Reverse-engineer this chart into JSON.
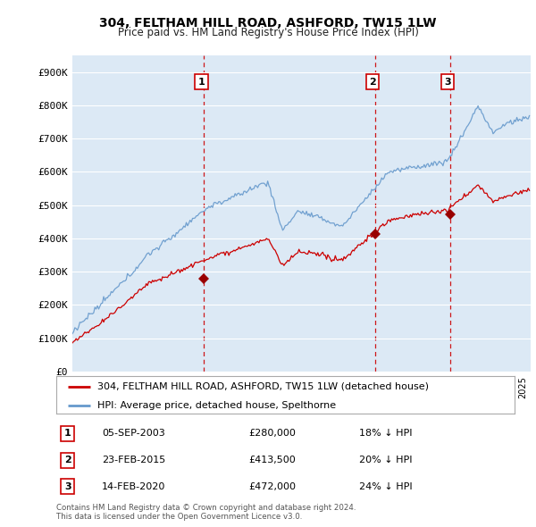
{
  "title": "304, FELTHAM HILL ROAD, ASHFORD, TW15 1LW",
  "subtitle": "Price paid vs. HM Land Registry's House Price Index (HPI)",
  "ylabel_ticks": [
    "£0",
    "£100K",
    "£200K",
    "£300K",
    "£400K",
    "£500K",
    "£600K",
    "£700K",
    "£800K",
    "£900K"
  ],
  "ytick_vals": [
    0,
    100000,
    200000,
    300000,
    400000,
    500000,
    600000,
    700000,
    800000,
    900000
  ],
  "ylim": [
    0,
    950000
  ],
  "xlim_start": 1995.0,
  "xlim_end": 2025.5,
  "background_color": "#dce9f5",
  "grid_color": "#ffffff",
  "legend_label_house": "304, FELTHAM HILL ROAD, ASHFORD, TW15 1LW (detached house)",
  "legend_label_hpi": "HPI: Average price, detached house, Spelthorne",
  "sale_points": [
    {
      "year": 2003.75,
      "price": 280000,
      "label": "1"
    },
    {
      "year": 2015.14,
      "price": 413500,
      "label": "2"
    },
    {
      "year": 2020.12,
      "price": 472000,
      "label": "3"
    }
  ],
  "sale_table": [
    {
      "num": "1",
      "date": "05-SEP-2003",
      "price": "£280,000",
      "pct": "18% ↓ HPI"
    },
    {
      "num": "2",
      "date": "23-FEB-2015",
      "price": "£413,500",
      "pct": "20% ↓ HPI"
    },
    {
      "num": "3",
      "date": "14-FEB-2020",
      "price": "£472,000",
      "pct": "24% ↓ HPI"
    }
  ],
  "footer": "Contains HM Land Registry data © Crown copyright and database right 2024.\nThis data is licensed under the Open Government Licence v3.0.",
  "house_line_color": "#cc0000",
  "hpi_line_color": "#6699cc",
  "vline_color": "#cc0000",
  "sale_marker_color": "#990000",
  "sale_label_border": "#cc0000"
}
